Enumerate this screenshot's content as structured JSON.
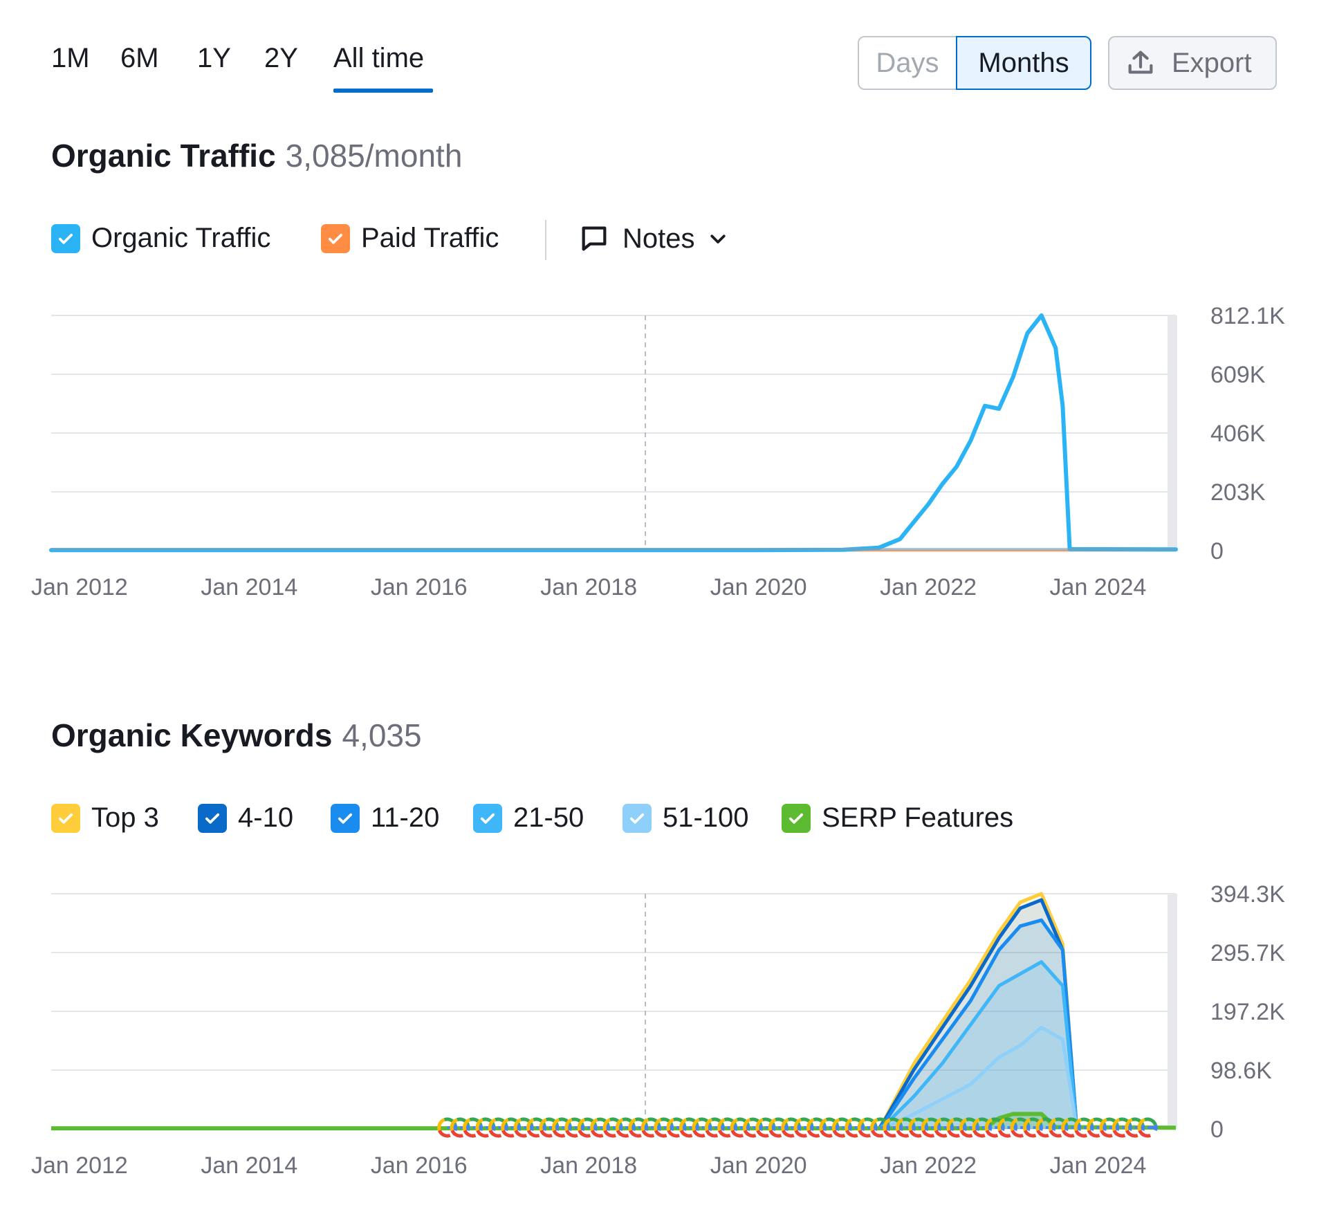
{
  "time_range": {
    "options": [
      "1M",
      "6M",
      "1Y",
      "2Y",
      "All time"
    ],
    "selected": "All time"
  },
  "granularity": {
    "days_label": "Days",
    "months_label": "Months",
    "selected": "Months"
  },
  "export_label": "Export",
  "colors": {
    "accent": "#006dca",
    "organic": "#2bb4f5",
    "paid": "#ff8c43",
    "top3": "#ffcc3a",
    "pos_4_10": "#0a6ac9",
    "pos_11_20": "#1a8cf0",
    "pos_21_50": "#3fb6f7",
    "pos_51_100": "#8fd0fa",
    "serp": "#5dbb31"
  },
  "traffic": {
    "title": "Organic Traffic",
    "value": "3,085/month",
    "legend": {
      "organic": "Organic Traffic",
      "paid": "Paid Traffic",
      "notes": "Notes"
    }
  },
  "keywords": {
    "title": "Organic Keywords",
    "value": "4,035",
    "legend": {
      "top3": "Top 3",
      "pos_4_10": "4-10",
      "pos_11_20": "11-20",
      "pos_21_50": "21-50",
      "pos_51_100": "51-100",
      "serp": "SERP Features"
    }
  },
  "chart_data": [
    {
      "type": "line",
      "title": "Organic Traffic",
      "x_start": "2011-09",
      "x_end": "2024-12",
      "x_ticks": [
        "Jan 2012",
        "Jan 2014",
        "Jan 2016",
        "Jan 2018",
        "Jan 2020",
        "Jan 2022",
        "Jan 2024"
      ],
      "y_ticks": [
        "812.1K",
        "609K",
        "406K",
        "203K",
        "0"
      ],
      "ylim": [
        0,
        812100
      ],
      "grid": true,
      "marker_date": "2018-09",
      "series": [
        {
          "name": "Organic Traffic",
          "color": "#2bb4f5",
          "points": [
            [
              "2011-09",
              2000
            ],
            [
              "2018-09",
              2000
            ],
            [
              "2020-01",
              2000
            ],
            [
              "2021-01",
              3000
            ],
            [
              "2021-06",
              10000
            ],
            [
              "2021-09",
              40000
            ],
            [
              "2021-11",
              100000
            ],
            [
              "2022-01",
              160000
            ],
            [
              "2022-03",
              230000
            ],
            [
              "2022-05",
              290000
            ],
            [
              "2022-07",
              380000
            ],
            [
              "2022-09",
              500000
            ],
            [
              "2022-11",
              490000
            ],
            [
              "2023-01",
              600000
            ],
            [
              "2023-03",
              750000
            ],
            [
              "2023-05",
              812100
            ],
            [
              "2023-07",
              700000
            ],
            [
              "2023-08",
              500000
            ],
            [
              "2023-09",
              5000
            ],
            [
              "2024-12",
              4000
            ]
          ]
        },
        {
          "name": "Paid Traffic",
          "color": "#ff8c43",
          "points": [
            [
              "2011-09",
              0
            ],
            [
              "2024-12",
              0
            ]
          ]
        }
      ]
    },
    {
      "type": "area",
      "title": "Organic Keywords",
      "x_start": "2011-09",
      "x_end": "2024-12",
      "x_ticks": [
        "Jan 2012",
        "Jan 2014",
        "Jan 2016",
        "Jan 2018",
        "Jan 2020",
        "Jan 2022",
        "Jan 2024"
      ],
      "y_ticks": [
        "394.3K",
        "295.7K",
        "197.2K",
        "98.6K",
        "0"
      ],
      "ylim": [
        0,
        394300
      ],
      "grid": true,
      "marker_date": "2018-09",
      "series": [
        {
          "name": "Top 3",
          "color": "#ffcc3a",
          "points": [
            [
              "2021-06",
              0
            ],
            [
              "2021-07",
              20000
            ],
            [
              "2021-11",
              110000
            ],
            [
              "2022-03",
              180000
            ],
            [
              "2022-07",
              250000
            ],
            [
              "2022-11",
              330000
            ],
            [
              "2023-02",
              380000
            ],
            [
              "2023-05",
              394300
            ],
            [
              "2023-08",
              310000
            ],
            [
              "2023-10",
              0
            ]
          ]
        },
        {
          "name": "4-10",
          "color": "#0a6ac9",
          "points": [
            [
              "2021-06",
              0
            ],
            [
              "2021-07",
              18000
            ],
            [
              "2021-11",
              100000
            ],
            [
              "2022-03",
              170000
            ],
            [
              "2022-07",
              240000
            ],
            [
              "2022-11",
              320000
            ],
            [
              "2023-02",
              370000
            ],
            [
              "2023-05",
              384000
            ],
            [
              "2023-08",
              300000
            ],
            [
              "2023-10",
              0
            ]
          ]
        },
        {
          "name": "11-20",
          "color": "#1a8cf0",
          "points": [
            [
              "2021-06",
              0
            ],
            [
              "2021-07",
              14000
            ],
            [
              "2021-11",
              85000
            ],
            [
              "2022-03",
              150000
            ],
            [
              "2022-07",
              215000
            ],
            [
              "2022-11",
              300000
            ],
            [
              "2023-02",
              340000
            ],
            [
              "2023-05",
              350000
            ],
            [
              "2023-08",
              300000
            ],
            [
              "2023-10",
              0
            ]
          ]
        },
        {
          "name": "21-50",
          "color": "#3fb6f7",
          "points": [
            [
              "2021-06",
              0
            ],
            [
              "2021-07",
              8000
            ],
            [
              "2021-11",
              55000
            ],
            [
              "2022-03",
              110000
            ],
            [
              "2022-07",
              175000
            ],
            [
              "2022-11",
              240000
            ],
            [
              "2023-02",
              260000
            ],
            [
              "2023-05",
              280000
            ],
            [
              "2023-08",
              240000
            ],
            [
              "2023-10",
              0
            ]
          ]
        },
        {
          "name": "51-100",
          "color": "#8fd0fa",
          "points": [
            [
              "2021-06",
              0
            ],
            [
              "2021-07",
              3000
            ],
            [
              "2021-11",
              25000
            ],
            [
              "2022-03",
              50000
            ],
            [
              "2022-07",
              75000
            ],
            [
              "2022-11",
              120000
            ],
            [
              "2023-02",
              140000
            ],
            [
              "2023-05",
              170000
            ],
            [
              "2023-08",
              150000
            ],
            [
              "2023-10",
              0
            ]
          ]
        },
        {
          "name": "SERP Features",
          "color": "#5dbb31",
          "points": [
            [
              "2011-09",
              1000
            ],
            [
              "2022-09",
              1000
            ],
            [
              "2022-11",
              18000
            ],
            [
              "2023-01",
              25000
            ],
            [
              "2023-05",
              25000
            ],
            [
              "2023-07",
              3000
            ],
            [
              "2024-12",
              2000
            ]
          ]
        }
      ],
      "google_update_markers": {
        "count": 56,
        "from": "2016-05",
        "to": "2024-08"
      }
    }
  ]
}
